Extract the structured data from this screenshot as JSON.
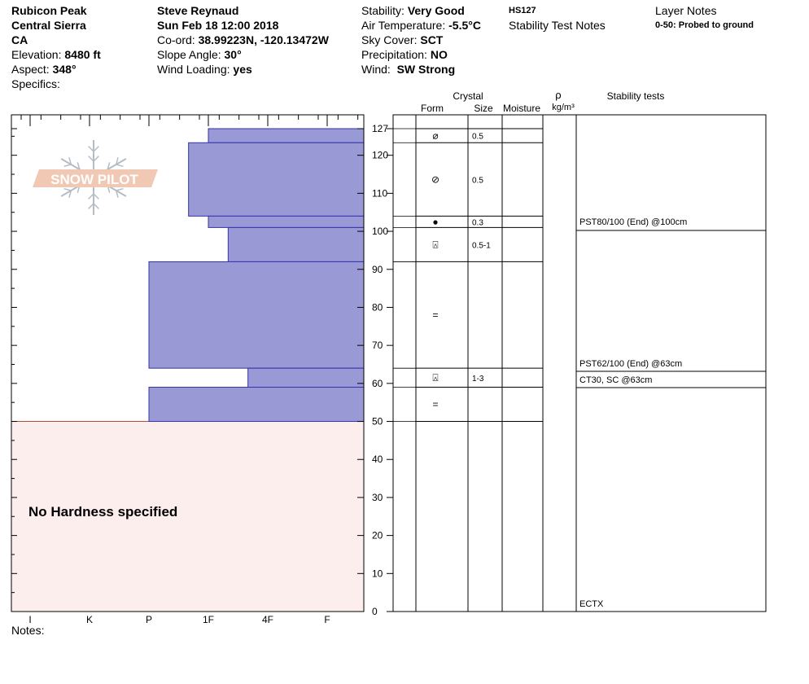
{
  "header": {
    "location": "Rubicon Peak",
    "range": "Central Sierra",
    "state": "CA",
    "elevation_label": "Elevation:",
    "elevation_value": "8480 ft",
    "aspect_label": "Aspect:",
    "aspect_value": "348°",
    "specifics_label": "Specifics:",
    "observer": "Steve Reynaud",
    "datetime": "Sun Feb 18 12:00 2018",
    "coord_label": "Co-ord:",
    "coord_value": "38.99223N, -120.13472W",
    "slope_label": "Slope Angle:",
    "slope_value": "30°",
    "wind_loading_label": "Wind Loading:",
    "wind_loading_value": "yes",
    "stability_label": "Stability:",
    "stability_value": "Very Good",
    "air_temp_label": "Air Temperature:",
    "air_temp_value": "-5.5°C",
    "sky_label": "Sky Cover:",
    "sky_value": "SCT",
    "precip_label": "Precipitation:",
    "precip_value": "NO",
    "wind_label": "Wind:",
    "wind_value": "SW Strong",
    "hs": "HS127",
    "stability_notes_title": "Stability Test Notes",
    "layer_notes_title": "Layer Notes",
    "layer_note": "0-50: Probed to ground"
  },
  "logo_text": "SNOW PILOT",
  "notes_label": "Notes:",
  "no_hardness_text": "No Hardness specified",
  "columns": {
    "crystal": "Crystal",
    "form": "Form",
    "size": "Size",
    "moisture": "Moisture",
    "rho": "ρ",
    "density_unit": "kg/m³",
    "stability_tests": "Stability tests"
  },
  "colors": {
    "hardness_fill": "#9999d6",
    "hardness_stroke": "#3333aa",
    "no_hardness_fill": "#fdeeee",
    "no_hardness_line": "#b04a3a",
    "logo": "#f0c8b4",
    "flake": "#b4bcc6"
  },
  "chart_data": {
    "type": "snow_profile",
    "x_axis_labels": [
      "I",
      "K",
      "P",
      "1F",
      "4F",
      "F"
    ],
    "y_tick_labels": [
      "0",
      "10",
      "20",
      "30",
      "40",
      "50",
      "60",
      "70",
      "80",
      "90",
      "100",
      "110",
      "120",
      "127"
    ],
    "ylim": [
      0,
      127
    ],
    "hardness_scale_order": [
      "I",
      "K",
      "P",
      "1F",
      "4F",
      "F"
    ],
    "hardness_layers": [
      {
        "top": 127,
        "bottom": 123.3,
        "hardness": "1F"
      },
      {
        "top": 123.3,
        "bottom": 104,
        "hardness": "1F-"
      },
      {
        "top": 104,
        "bottom": 101,
        "hardness": "1F"
      },
      {
        "top": 101,
        "bottom": 92,
        "hardness": "1F+"
      },
      {
        "top": 92,
        "bottom": 64,
        "hardness": "P"
      },
      {
        "top": 64,
        "bottom": 59,
        "hardness": "4F-"
      },
      {
        "top": 59,
        "bottom": 50,
        "hardness": "P"
      }
    ],
    "no_hardness_range": [
      0,
      50
    ],
    "crystal_layers": [
      {
        "top": 127,
        "bottom": 123.3,
        "form": "PPgp",
        "symbol": "⌀",
        "size": "0.5"
      },
      {
        "top": 123.3,
        "bottom": 104,
        "form": "DF",
        "symbol": "⊘",
        "size": "0.5"
      },
      {
        "top": 104,
        "bottom": 101,
        "form": "MF",
        "symbol": "●",
        "size": "0.3"
      },
      {
        "top": 101,
        "bottom": 92,
        "form": "FCxr",
        "symbol": "⍓",
        "size": "0.5-1"
      },
      {
        "top": 92,
        "bottom": 64,
        "form": "RG",
        "symbol": "=",
        "size": ""
      },
      {
        "top": 64,
        "bottom": 59,
        "form": "FCxr",
        "symbol": "⍓",
        "size": "1-3"
      },
      {
        "top": 59,
        "bottom": 50,
        "form": "RG",
        "symbol": "=",
        "size": ""
      }
    ],
    "stability_tests": [
      {
        "depth": 100,
        "text": "PST80/100 (End) @100cm"
      },
      {
        "depth": 63,
        "text": "PST62/100 (End) @63cm"
      },
      {
        "depth": 63,
        "text": "CT30, SC @63cm"
      },
      {
        "depth": 0,
        "text": "ECTX"
      }
    ]
  }
}
